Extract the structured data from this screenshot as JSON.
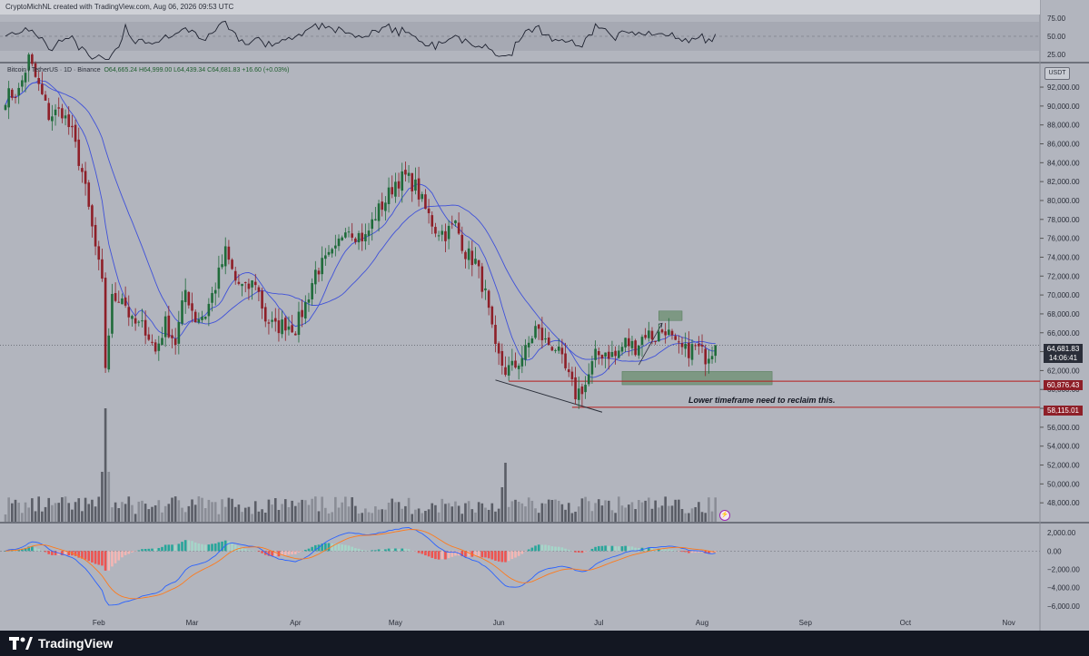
{
  "header": {
    "credit": "CryptoMichNL created with TradingView.com, Aug 06, 2026 09:53 UTC"
  },
  "legend": {
    "symbol": "Bitcoin / TetherUS · 1D · Binance",
    "ohlc": "O64,665.24 H64,999.00 L64,439.34 C64,681.83 +16.60 (+0.03%)"
  },
  "currency": "USDT",
  "footer": {
    "brand": "TradingView"
  },
  "price_tags": {
    "current": "64,681.83",
    "timer": "14:06:41",
    "level_1": "60,876.43",
    "level_2": "58,115.01"
  },
  "annotation": "Lower timeframe need to reclaim this.",
  "colors": {
    "up": "#1f6b3a",
    "down": "#8e1f28",
    "ma": "#3f51d9",
    "macd": "#2962ff",
    "signal": "#ff7a1a",
    "hist_up": "#26a69a",
    "hist_down": "#ef5350",
    "zone": "#6b8f6f",
    "level": "#b71c1c"
  },
  "chart_data": [
    {
      "type": "candlestick",
      "title": "Bitcoin / TetherUS, 1D, Binance",
      "x_labels": [
        "Feb",
        "Mar",
        "Apr",
        "May",
        "Jun",
        "Jul",
        "Aug",
        "Sep",
        "Oct",
        "Nov"
      ],
      "y_ticks": [
        "48,000.00",
        "50,000.00",
        "52,000.00",
        "54,000.00",
        "56,000.00",
        "58,000.00",
        "60,000.00",
        "62,000.00",
        "64,000.00",
        "66,000.00",
        "68,000.00",
        "70,000.00",
        "72,000.00",
        "74,000.00",
        "76,000.00",
        "78,000.00",
        "80,000.00",
        "82,000.00",
        "84,000.00",
        "86,000.00",
        "88,000.00",
        "90,000.00",
        "92,000.00"
      ],
      "ylim": [
        46000,
        94500
      ],
      "anchor_path": [
        {
          "d": 0,
          "p": 91000
        },
        {
          "d": 4,
          "p": 91500
        },
        {
          "d": 7,
          "p": 95000
        },
        {
          "d": 10,
          "p": 92000
        },
        {
          "d": 13,
          "p": 89000
        },
        {
          "d": 17,
          "p": 89500
        },
        {
          "d": 20,
          "p": 87000
        },
        {
          "d": 23,
          "p": 83000
        },
        {
          "d": 26,
          "p": 77000
        },
        {
          "d": 29,
          "p": 71000
        },
        {
          "d": 30,
          "p": 62500
        },
        {
          "d": 32,
          "p": 69500
        },
        {
          "d": 35,
          "p": 70000
        },
        {
          "d": 38,
          "p": 67000
        },
        {
          "d": 42,
          "p": 66500
        },
        {
          "d": 45,
          "p": 64000
        },
        {
          "d": 48,
          "p": 67000
        },
        {
          "d": 51,
          "p": 65000
        },
        {
          "d": 54,
          "p": 70500
        },
        {
          "d": 57,
          "p": 67500
        },
        {
          "d": 60,
          "p": 68000
        },
        {
          "d": 63,
          "p": 71000
        },
        {
          "d": 66,
          "p": 74500
        },
        {
          "d": 69,
          "p": 71500
        },
        {
          "d": 72,
          "p": 70500
        },
        {
          "d": 75,
          "p": 71500
        },
        {
          "d": 78,
          "p": 67500
        },
        {
          "d": 81,
          "p": 66500
        },
        {
          "d": 84,
          "p": 67000
        },
        {
          "d": 87,
          "p": 66500
        },
        {
          "d": 90,
          "p": 69000
        },
        {
          "d": 93,
          "p": 72500
        },
        {
          "d": 96,
          "p": 73500
        },
        {
          "d": 99,
          "p": 74500
        },
        {
          "d": 102,
          "p": 77500
        },
        {
          "d": 105,
          "p": 76500
        },
        {
          "d": 108,
          "p": 76000
        },
        {
          "d": 111,
          "p": 78500
        },
        {
          "d": 114,
          "p": 80000
        },
        {
          "d": 117,
          "p": 82000
        },
        {
          "d": 120,
          "p": 82500
        },
        {
          "d": 123,
          "p": 81500
        },
        {
          "d": 126,
          "p": 79000
        },
        {
          "d": 129,
          "p": 77000
        },
        {
          "d": 132,
          "p": 76500
        },
        {
          "d": 135,
          "p": 77500
        },
        {
          "d": 138,
          "p": 74500
        },
        {
          "d": 141,
          "p": 73500
        },
        {
          "d": 144,
          "p": 70000
        },
        {
          "d": 147,
          "p": 64000
        },
        {
          "d": 150,
          "p": 62000
        },
        {
          "d": 153,
          "p": 62500
        },
        {
          "d": 156,
          "p": 64000
        },
        {
          "d": 159,
          "p": 66500
        },
        {
          "d": 162,
          "p": 65000
        },
        {
          "d": 165,
          "p": 64500
        },
        {
          "d": 168,
          "p": 62000
        },
        {
          "d": 171,
          "p": 59500
        },
        {
          "d": 174,
          "p": 60500
        },
        {
          "d": 177,
          "p": 63500
        },
        {
          "d": 180,
          "p": 64000
        },
        {
          "d": 183,
          "p": 63500
        },
        {
          "d": 186,
          "p": 65000
        },
        {
          "d": 189,
          "p": 64500
        },
        {
          "d": 192,
          "p": 66000
        },
        {
          "d": 195,
          "p": 65500
        },
        {
          "d": 198,
          "p": 66500
        },
        {
          "d": 201,
          "p": 64500
        },
        {
          "d": 204,
          "p": 64000
        },
        {
          "d": 207,
          "p": 64500
        },
        {
          "d": 210,
          "p": 63500
        },
        {
          "d": 213,
          "p": 64700
        }
      ],
      "last_price": 64681.83,
      "levels": [
        60876.43,
        58115.01
      ],
      "zones": [
        {
          "x_from": 185,
          "x_to": 230,
          "y_from": 60500,
          "y_to": 61900
        },
        {
          "x_from": 196,
          "x_to": 203,
          "y_from": 67300,
          "y_to": 68300
        }
      ],
      "trendline": [
        {
          "x": 147,
          "y": 61000
        },
        {
          "x": 179,
          "y": 57600
        }
      ]
    },
    {
      "type": "line",
      "title": "RSI",
      "y_ticks": [
        "75.00",
        "50.00",
        "25.00"
      ],
      "ylim": [
        15,
        80
      ]
    },
    {
      "type": "bar",
      "title": "Volume"
    },
    {
      "type": "line",
      "title": "MACD",
      "y_ticks": [
        "2,000.00",
        "0.00",
        "−2,000.00",
        "−4,000.00",
        "−6,000.00"
      ],
      "ylim": [
        -7000,
        3000
      ]
    }
  ]
}
